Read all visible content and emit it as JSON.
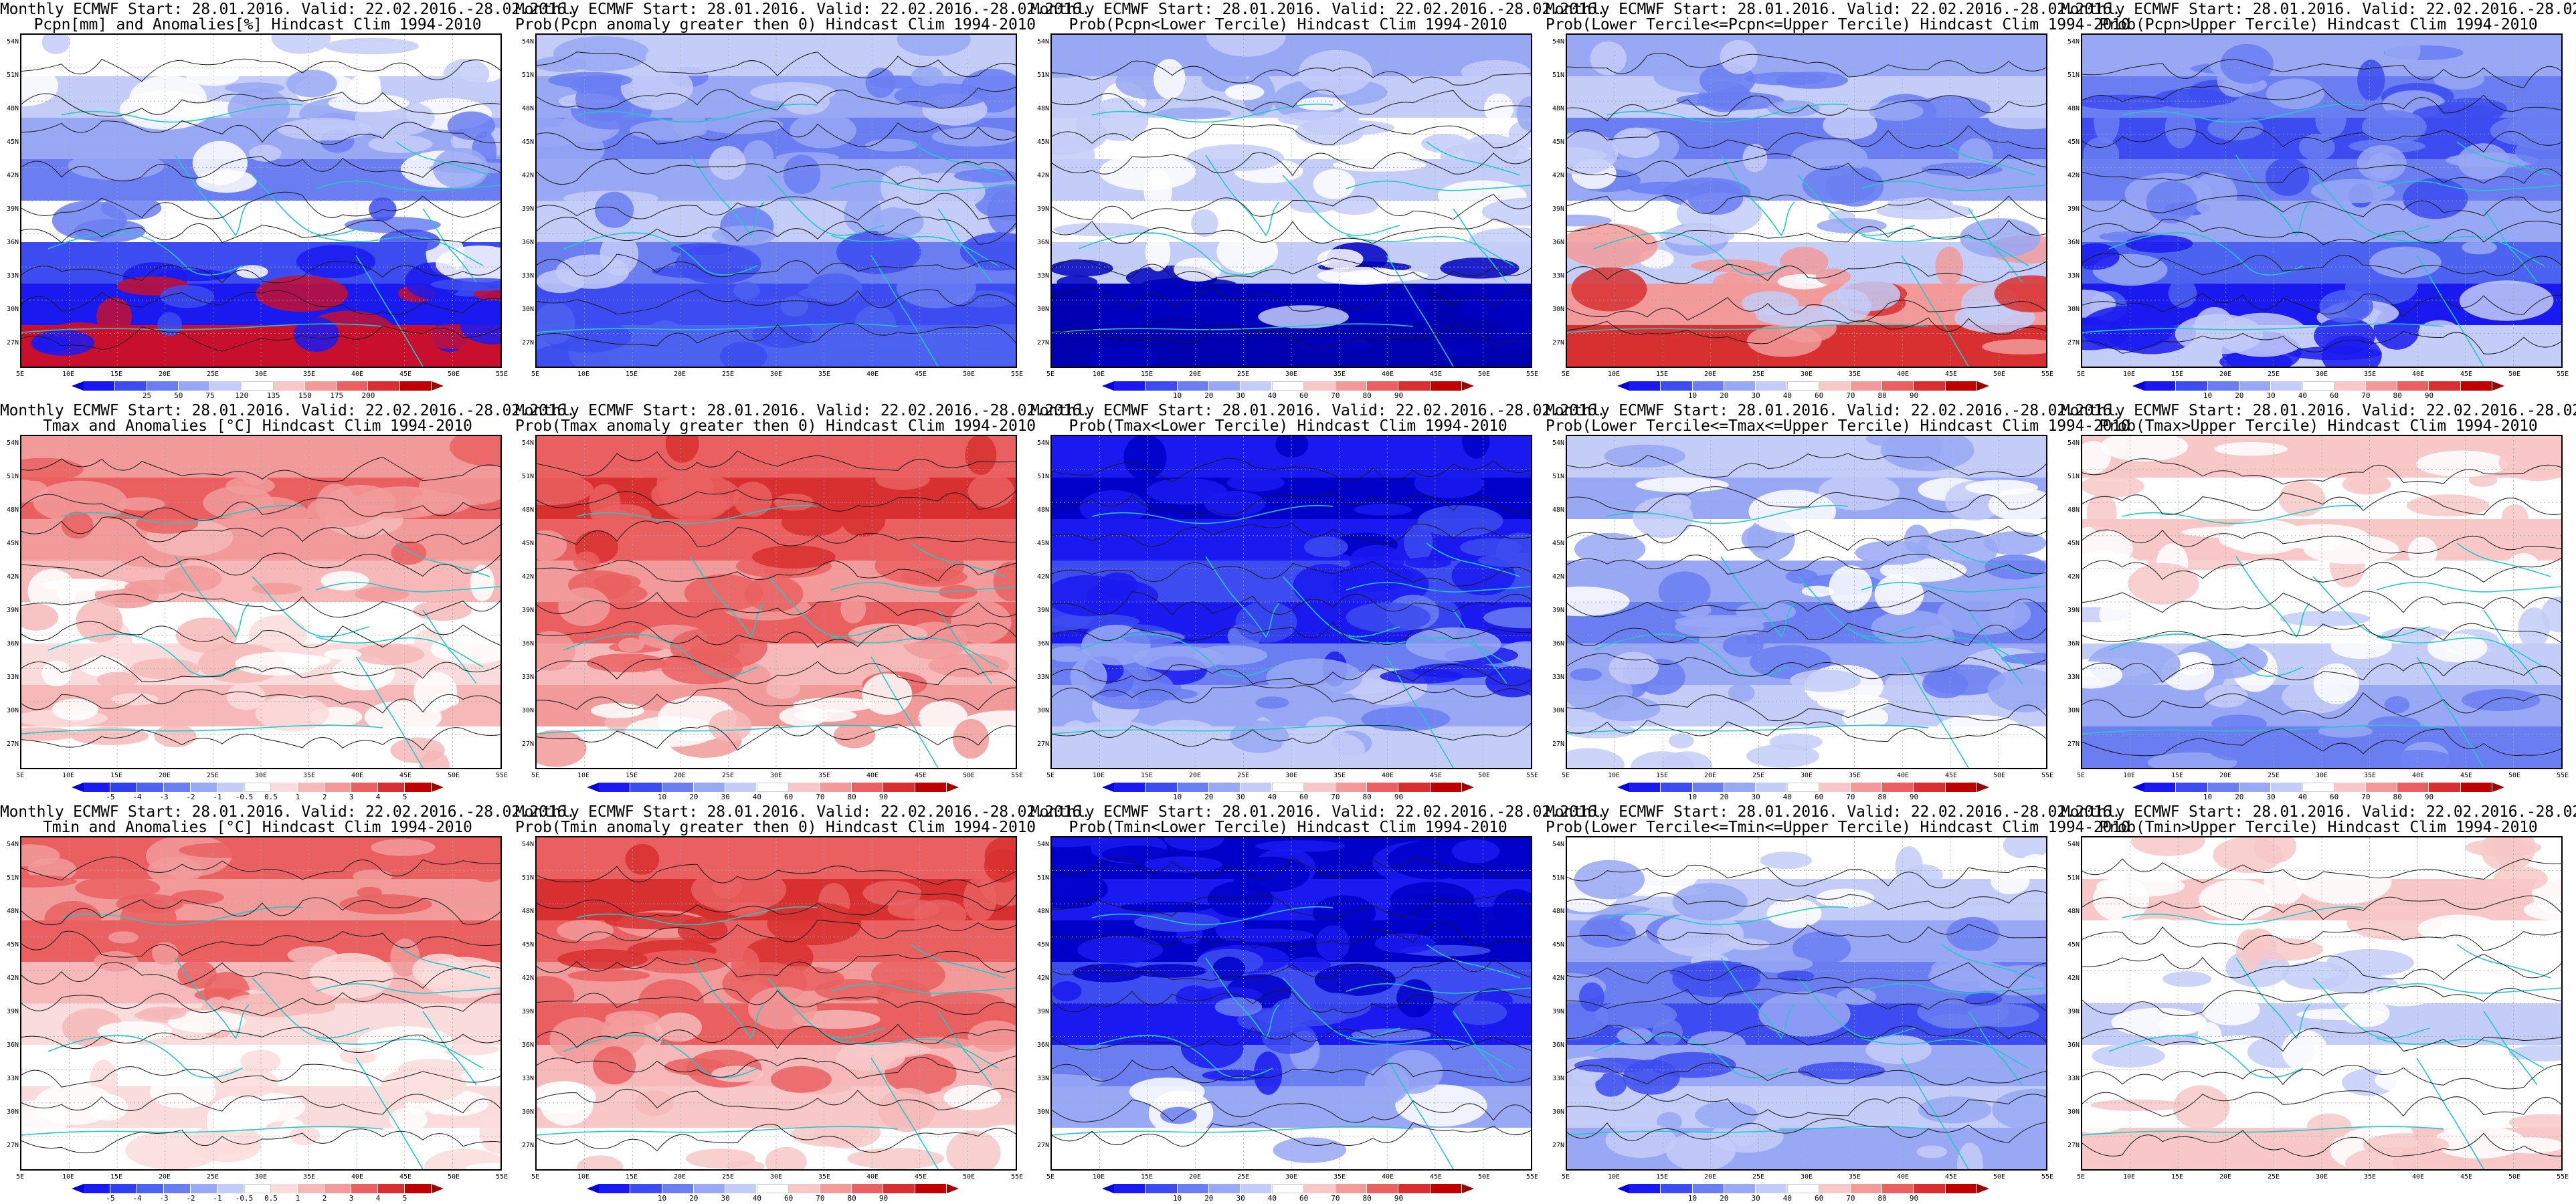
{
  "start_line": "Monthly ECMWF Start: 28.01.2016. Valid: 22.02.2016.-28.02.2016.",
  "lat_labels": [
    "54N",
    "51N",
    "48N",
    "45N",
    "42N",
    "39N",
    "36N",
    "33N",
    "30N",
    "27N"
  ],
  "lon_labels": [
    "5E",
    "10E",
    "15E",
    "20E",
    "25E",
    "30E",
    "35E",
    "40E",
    "45E",
    "50E",
    "55E"
  ],
  "colorbars": {
    "precip_anom": {
      "labels": [
        "25",
        "50",
        "75",
        "120",
        "135",
        "150",
        "175",
        "200"
      ],
      "colors": [
        "#1a1af0",
        "#3c4cf0",
        "#6a7ef2",
        "#98a8f4",
        "#c4ccf8",
        "#ffffff",
        "#f8c8c8",
        "#f29a9a",
        "#ea6060",
        "#d83030",
        "#bf0000"
      ],
      "left_arrow": "#0000d8",
      "right_arrow": "#a00000"
    },
    "probability": {
      "labels": [
        "10",
        "20",
        "30",
        "40",
        "60",
        "70",
        "80",
        "90"
      ],
      "colors": [
        "#1a1af0",
        "#3c4cf0",
        "#6a7ef2",
        "#98a8f4",
        "#c4ccf8",
        "#ffffff",
        "#f8c8c8",
        "#f29a9a",
        "#ea6060",
        "#d83030",
        "#bf0000"
      ],
      "left_arrow": "#0000d8",
      "right_arrow": "#a00000"
    },
    "temp_anom": {
      "labels": [
        "-5",
        "-4",
        "-3",
        "-2",
        "-1",
        "-0.5",
        "0.5",
        "1",
        "2",
        "3",
        "4",
        "5"
      ],
      "colors": [
        "#1a1af0",
        "#2e3ef0",
        "#4c62f0",
        "#6a7ef2",
        "#98a8f4",
        "#c4ccf8",
        "#ffffff",
        "#fbdcdc",
        "#f6b8b8",
        "#f29a9a",
        "#ea6060",
        "#d83030",
        "#bf0000"
      ],
      "left_arrow": "#0000d8",
      "right_arrow": "#a00000"
    }
  },
  "panels": [
    {
      "name": "pcpn-anomalies",
      "title": "Pcpn[mm] and Anomalies[%] Hindcast Clim 1994-2010",
      "colorbar": "precip_anom",
      "fill": [
        "#ffffff",
        "#c4ccf8",
        "#98a8f4",
        "#6a7ef2",
        "#ffffff",
        "#3c4cf0",
        "#1a1af0",
        "#c8102e"
      ]
    },
    {
      "name": "prob-pcpn-gt0",
      "title": "Prob(Pcpn anomaly greater then 0) Hindcast Clim 1994-2010",
      "colorbar": null,
      "fill": [
        "#c4ccf8",
        "#98a8f4",
        "#6a7ef2",
        "#98a8f4",
        "#c4ccf8",
        "#6a7ef2",
        "#3c4cf0",
        "#4c62f0"
      ]
    },
    {
      "name": "prob-pcpn-lower",
      "title": "Prob(Pcpn<Lower Tercile) Hindcast Clim 1994-2010",
      "colorbar": "probability",
      "fill": [
        "#98a8f4",
        "#c4ccf8",
        "#ffffff",
        "#c4ccf8",
        "#ffffff",
        "#c4ccf8",
        "#0000c0",
        "#0000b0"
      ]
    },
    {
      "name": "prob-pcpn-middle",
      "title": "Prob(Lower Tercile<=Pcpn<=Upper Tercile) Hindcast Clim 1994-2010",
      "colorbar": "probability",
      "fill": [
        "#98a8f4",
        "#c4ccf8",
        "#6a7ef2",
        "#98a8f4",
        "#ffffff",
        "#c4ccf8",
        "#f29a9a",
        "#d83030"
      ]
    },
    {
      "name": "prob-pcpn-upper",
      "title": "Prob(Pcpn>Upper Tercile) Hindcast Clim 1994-2010",
      "colorbar": "probability",
      "fill": [
        "#98a8f4",
        "#6a7ef2",
        "#3c4cf0",
        "#6a7ef2",
        "#98a8f4",
        "#4c62f0",
        "#1a1af0",
        "#c4ccf8"
      ]
    },
    {
      "name": "tmax-anomalies",
      "title": "Tmax and Anomalies [°C] Hindcast Clim 1994-2010",
      "colorbar": "temp_anom",
      "fill": [
        "#f29a9a",
        "#ea6060",
        "#f29a9a",
        "#f6b8b8",
        "#ffffff",
        "#fbdcdc",
        "#f6b8b8",
        "#ffffff"
      ]
    },
    {
      "name": "prob-tmax-gt0",
      "title": "Prob(Tmax anomaly greater then 0) Hindcast Clim 1994-2010",
      "colorbar": "probability",
      "fill": [
        "#ea6060",
        "#d83030",
        "#ea6060",
        "#f29a9a",
        "#ea6060",
        "#f6b8b8",
        "#f29a9a",
        "#ffffff"
      ]
    },
    {
      "name": "prob-tmax-lower",
      "title": "Prob(Tmax<Lower Tercile) Hindcast Clim 1994-2010",
      "colorbar": "probability",
      "fill": [
        "#1a1af0",
        "#0000c8",
        "#1a1af0",
        "#3c4cf0",
        "#1a1af0",
        "#6a7ef2",
        "#98a8f4",
        "#c4ccf8"
      ]
    },
    {
      "name": "prob-tmax-middle",
      "title": "Prob(Lower Tercile<=Tmax<=Upper Tercile) Hindcast Clim 1994-2010",
      "colorbar": "probability",
      "fill": [
        "#c4ccf8",
        "#98a8f4",
        "#ffffff",
        "#98a8f4",
        "#6a7ef2",
        "#98a8f4",
        "#c4ccf8",
        "#ffffff"
      ]
    },
    {
      "name": "prob-tmax-upper",
      "title": "Prob(Tmax>Upper Tercile) Hindcast Clim 1994-2010",
      "colorbar": "probability",
      "fill": [
        "#f8c8c8",
        "#ffffff",
        "#f8c8c8",
        "#ffffff",
        "#ffffff",
        "#c4ccf8",
        "#98a8f4",
        "#6a7ef2"
      ]
    },
    {
      "name": "tmin-anomalies",
      "title": "Tmin and Anomalies [°C] Hindcast Clim 1994-2010",
      "colorbar": "temp_anom",
      "fill": [
        "#ea6060",
        "#f29a9a",
        "#ea6060",
        "#f6b8b8",
        "#fbdcdc",
        "#ffffff",
        "#fbdcdc",
        "#ffffff"
      ]
    },
    {
      "name": "prob-tmin-gt0",
      "title": "Prob(Tmin anomaly greater then 0) Hindcast Clim 1994-2010",
      "colorbar": "probability",
      "fill": [
        "#ea6060",
        "#d83030",
        "#ea6060",
        "#f29a9a",
        "#ea6060",
        "#f6b8b8",
        "#f8c8c8",
        "#ffffff"
      ]
    },
    {
      "name": "prob-tmin-lower",
      "title": "Prob(Tmin<Lower Tercile) Hindcast Clim 1994-2010",
      "colorbar": "probability",
      "fill": [
        "#0000c8",
        "#1a1af0",
        "#0000c8",
        "#3c4cf0",
        "#1a1af0",
        "#6a7ef2",
        "#98a8f4",
        "#ffffff"
      ]
    },
    {
      "name": "prob-tmin-middle",
      "title": "Prob(Lower Tercile<=Tmin<=Upper Tercile) Hindcast Clim 1994-2010",
      "colorbar": "probability",
      "fill": [
        "#ffffff",
        "#c4ccf8",
        "#98a8f4",
        "#6a7ef2",
        "#3c4cf0",
        "#98a8f4",
        "#c4ccf8",
        "#98a8f4"
      ]
    },
    {
      "name": "prob-tmin-upper",
      "title": "Prob(Tmin>Upper Tercile) Hindcast Clim 1994-2010",
      "colorbar": null,
      "fill": [
        "#ffffff",
        "#f8c8c8",
        "#ffffff",
        "#ffffff",
        "#c4ccf8",
        "#ffffff",
        "#ffffff",
        "#f8c8c8"
      ]
    }
  ]
}
